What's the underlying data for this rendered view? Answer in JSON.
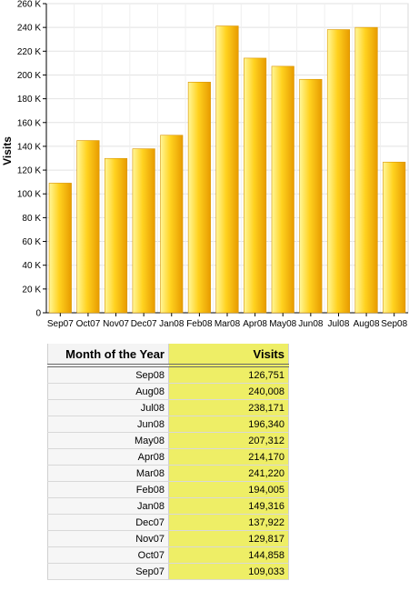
{
  "chart_data": {
    "type": "bar",
    "title": "",
    "xlabel": "",
    "ylabel": "Visits",
    "ylim": [
      0,
      260000
    ],
    "yticks": [
      "0",
      "20 K",
      "40 K",
      "60 K",
      "80 K",
      "100 K",
      "120 K",
      "140 K",
      "160 K",
      "180 K",
      "200 K",
      "220 K",
      "240 K",
      "260 K"
    ],
    "ytick_values": [
      0,
      20000,
      40000,
      60000,
      80000,
      100000,
      120000,
      140000,
      160000,
      180000,
      200000,
      220000,
      240000,
      260000
    ],
    "grid": true,
    "categories": [
      "Sep07",
      "Oct07",
      "Nov07",
      "Dec07",
      "Jan08",
      "Feb08",
      "Mar08",
      "Apr08",
      "May08",
      "Jun08",
      "Jul08",
      "Aug08",
      "Sep08"
    ],
    "values": [
      109033,
      144858,
      129817,
      137922,
      149316,
      194005,
      241220,
      214170,
      207312,
      196340,
      238171,
      240008,
      126751
    ],
    "colors": {
      "bar_light": "#fff79a",
      "bar_mid": "#ffd21f",
      "bar_dark": "#e89b00",
      "grid": "#e2e2e2"
    }
  },
  "table": {
    "headers": [
      "Month of the Year",
      "Visits"
    ],
    "rows": [
      [
        "Sep08",
        "126,751"
      ],
      [
        "Aug08",
        "240,008"
      ],
      [
        "Jul08",
        "238,171"
      ],
      [
        "Jun08",
        "196,340"
      ],
      [
        "May08",
        "207,312"
      ],
      [
        "Apr08",
        "214,170"
      ],
      [
        "Mar08",
        "241,220"
      ],
      [
        "Feb08",
        "194,005"
      ],
      [
        "Jan08",
        "149,316"
      ],
      [
        "Dec07",
        "137,922"
      ],
      [
        "Nov07",
        "129,817"
      ],
      [
        "Oct07",
        "144,858"
      ],
      [
        "Sep07",
        "109,033"
      ]
    ]
  }
}
